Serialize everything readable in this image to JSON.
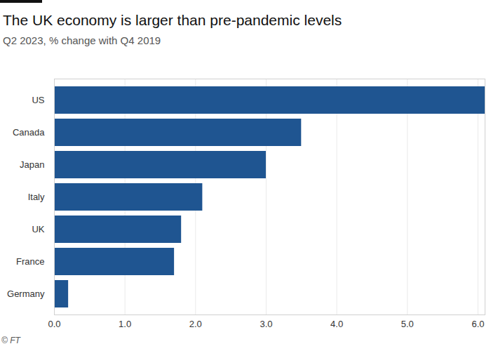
{
  "chart_data": {
    "type": "bar",
    "title": "The UK economy is larger than pre-pandemic levels",
    "subtitle": "Q2 2023, % change with Q4 2019",
    "caption": "© FT",
    "orientation": "horizontal",
    "categories": [
      "US",
      "Canada",
      "Japan",
      "Italy",
      "UK",
      "France",
      "Germany"
    ],
    "values": [
      6.1,
      3.5,
      3.0,
      2.1,
      1.8,
      1.7,
      0.2
    ],
    "color": "#1f5591",
    "xlim": [
      0,
      6.1
    ],
    "xticks": [
      0,
      1,
      2,
      3,
      4,
      5,
      6
    ],
    "grid": true
  }
}
